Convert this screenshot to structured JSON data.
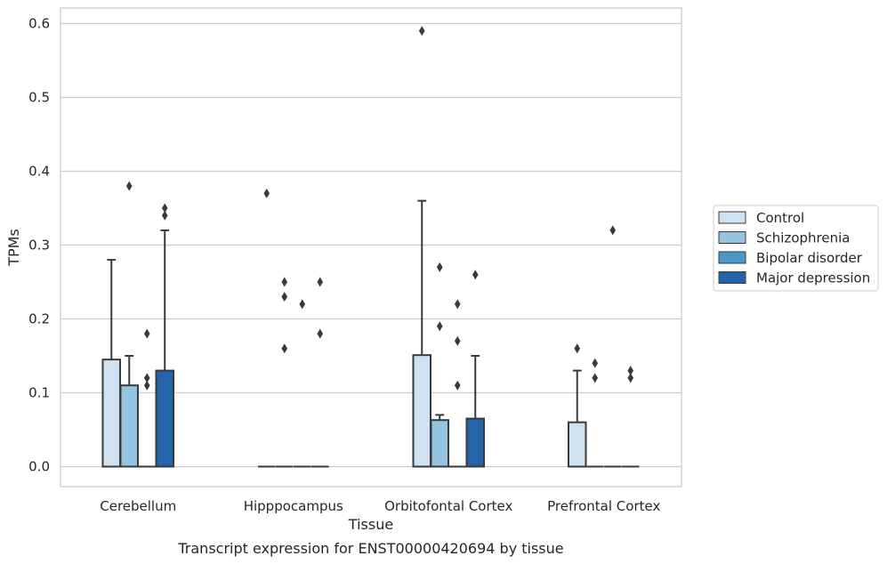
{
  "chart_data": {
    "type": "box",
    "title": "",
    "caption": "Transcript expression for ENST00000420694 by tissue",
    "xlabel": "Tissue",
    "ylabel": "TPMs",
    "ylim": [
      -0.028,
      0.62
    ],
    "yticks": [
      0.0,
      0.1,
      0.2,
      0.3,
      0.4,
      0.5,
      0.6
    ],
    "ytick_labels": [
      "0.0",
      "0.1",
      "0.2",
      "0.3",
      "0.4",
      "0.5",
      "0.6"
    ],
    "grid": "horizontal",
    "legend_placement": "right",
    "categories": [
      "Cerebellum",
      "Hipppocampus",
      "Orbitofontal Cortex",
      "Prefrontal Cortex"
    ],
    "series": [
      {
        "name": "Control",
        "color": "#d0e1f2",
        "boxes": [
          {
            "q1": 0,
            "median": 0,
            "q3": 0.145,
            "whisker_low": 0,
            "whisker_high": 0.28,
            "outliers": []
          },
          {
            "q1": 0,
            "median": 0,
            "q3": 0,
            "whisker_low": 0,
            "whisker_high": 0,
            "outliers": [
              0.37
            ]
          },
          {
            "q1": 0,
            "median": 0,
            "q3": 0.151,
            "whisker_low": 0,
            "whisker_high": 0.36,
            "outliers": [
              0.59
            ]
          },
          {
            "q1": 0,
            "median": 0,
            "q3": 0.06,
            "whisker_low": 0,
            "whisker_high": 0.13,
            "outliers": [
              0.16
            ]
          }
        ]
      },
      {
        "name": "Schizophrenia",
        "color": "#94c4df",
        "boxes": [
          {
            "q1": 0,
            "median": 0,
            "q3": 0.11,
            "whisker_low": 0,
            "whisker_high": 0.15,
            "outliers": [
              0.38
            ]
          },
          {
            "q1": 0,
            "median": 0,
            "q3": 0,
            "whisker_low": 0,
            "whisker_high": 0,
            "outliers": [
              0.16,
              0.23,
              0.25
            ]
          },
          {
            "q1": 0,
            "median": 0,
            "q3": 0.063,
            "whisker_low": 0,
            "whisker_high": 0.07,
            "outliers": [
              0.19,
              0.27
            ]
          },
          {
            "q1": 0,
            "median": 0,
            "q3": 0,
            "whisker_low": 0,
            "whisker_high": 0,
            "outliers": [
              0.12,
              0.14
            ]
          }
        ]
      },
      {
        "name": "Bipolar disorder",
        "color": "#4a98c9",
        "boxes": [
          {
            "q1": 0,
            "median": 0,
            "q3": 0,
            "whisker_low": 0,
            "whisker_high": 0,
            "outliers": [
              0.11,
              0.12,
              0.18
            ]
          },
          {
            "q1": 0,
            "median": 0,
            "q3": 0,
            "whisker_low": 0,
            "whisker_high": 0,
            "outliers": [
              0.22
            ]
          },
          {
            "q1": 0,
            "median": 0,
            "q3": 0,
            "whisker_low": 0,
            "whisker_high": 0,
            "outliers": [
              0.11,
              0.17,
              0.22
            ]
          },
          {
            "q1": 0,
            "median": 0,
            "q3": 0,
            "whisker_low": 0,
            "whisker_high": 0,
            "outliers": [
              0.32
            ]
          }
        ]
      },
      {
        "name": "Major depression",
        "color": "#2464a8",
        "boxes": [
          {
            "q1": 0,
            "median": 0,
            "q3": 0.13,
            "whisker_low": 0,
            "whisker_high": 0.32,
            "outliers": [
              0.34,
              0.35
            ]
          },
          {
            "q1": 0,
            "median": 0,
            "q3": 0,
            "whisker_low": 0,
            "whisker_high": 0,
            "outliers": [
              0.18,
              0.25
            ]
          },
          {
            "q1": 0,
            "median": 0,
            "q3": 0.065,
            "whisker_low": 0,
            "whisker_high": 0.15,
            "outliers": [
              0.26
            ]
          },
          {
            "q1": 0,
            "median": 0,
            "q3": 0,
            "whisker_low": 0,
            "whisker_high": 0,
            "outliers": [
              0.12,
              0.13
            ]
          }
        ]
      }
    ]
  }
}
